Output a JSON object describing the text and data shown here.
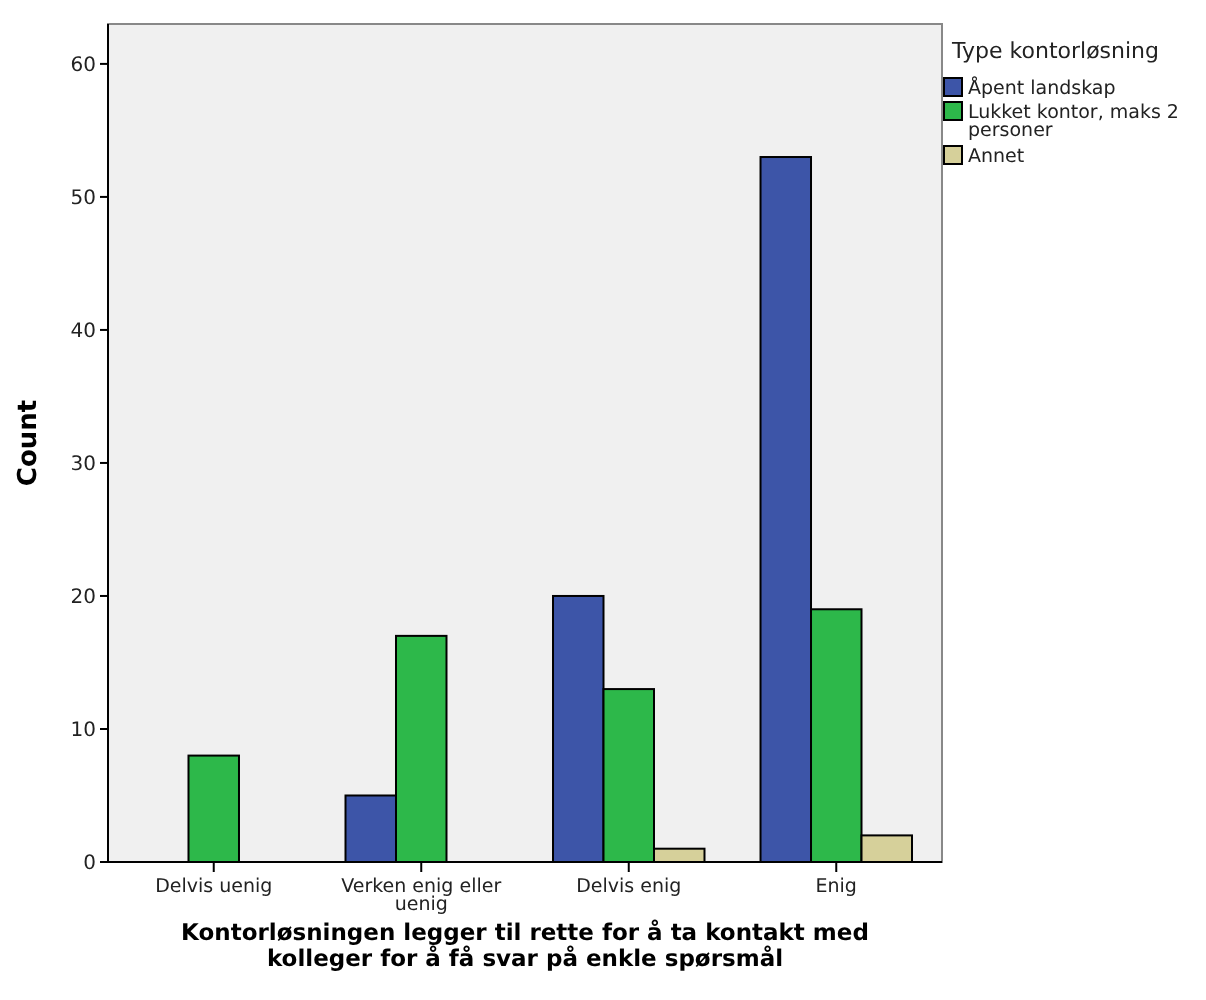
{
  "chart_data": {
    "type": "bar",
    "xlabel": "Kontorløsningen legger til rette for å ta kontakt med kolleger for å få svar på enkle spørsmål",
    "ylabel": "Count",
    "legend_title": "Type kontorløsning",
    "categories": [
      "Delvis uenig",
      "Verken enig eller uenig",
      "Delvis enig",
      "Enig"
    ],
    "series": [
      {
        "name": "Åpent landskap",
        "color": "#3d55a8",
        "values": [
          0,
          5,
          20,
          53
        ]
      },
      {
        "name": "Lukket kontor, maks 2 personer",
        "color": "#2db84a",
        "values": [
          8,
          17,
          13,
          19
        ]
      },
      {
        "name": "Annet",
        "color": "#d6d09a",
        "values": [
          0,
          0,
          1,
          2
        ]
      }
    ],
    "ylim": [
      0,
      63
    ],
    "yticks": [
      0,
      10,
      20,
      30,
      40,
      50,
      60
    ],
    "grid": false,
    "legend": "top right"
  }
}
